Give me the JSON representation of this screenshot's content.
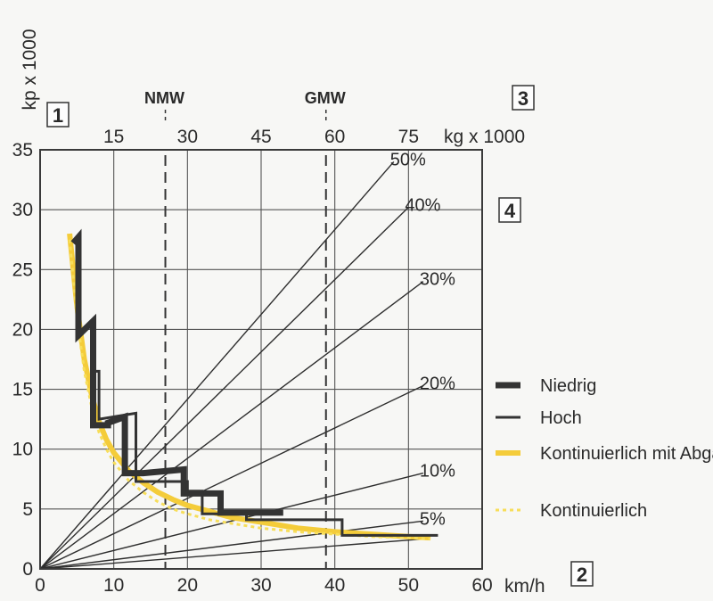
{
  "chart_data": {
    "type": "line",
    "ylabel": "kp x 1000",
    "xlabel": "km/h",
    "xlim": [
      0,
      60
    ],
    "ylim": [
      0,
      35
    ],
    "xticks": [
      "0",
      "10",
      "20",
      "30",
      "40",
      "50",
      "60"
    ],
    "yticks": [
      "0",
      "5",
      "10",
      "15",
      "20",
      "25",
      "30",
      "35"
    ],
    "top_axis": {
      "unit": "kg x 1000",
      "ticks": [
        {
          "label": "15",
          "x": 10
        },
        {
          "label": "30",
          "x": 20
        },
        {
          "label": "45",
          "x": 30
        },
        {
          "label": "60",
          "x": 40
        },
        {
          "label": "75",
          "x": 50
        }
      ]
    },
    "markers": [
      {
        "label": "NMW",
        "x": 17
      },
      {
        "label": "GMW",
        "x": 38.8
      }
    ],
    "grid": true,
    "gradients": [
      {
        "label": "50%",
        "to": [
          48,
          34
        ]
      },
      {
        "label": "40%",
        "to": [
          50,
          30.2
        ]
      },
      {
        "label": "30%",
        "to": [
          52,
          24
        ]
      },
      {
        "label": "20%",
        "to": [
          52,
          15.3
        ]
      },
      {
        "label": "10%",
        "to": [
          52,
          8
        ]
      },
      {
        "label": "5%",
        "to": [
          52,
          4
        ]
      },
      {
        "to": [
          52,
          2.5
        ]
      }
    ],
    "series": [
      {
        "name": "Niedrig",
        "style": "thick",
        "color": "#333333",
        "points": [
          [
            4.5,
            27.2
          ],
          [
            5.2,
            27.7
          ],
          [
            5.2,
            19.5
          ],
          [
            7.2,
            20.7
          ],
          [
            7.2,
            12
          ],
          [
            9.2,
            12
          ],
          [
            9.2,
            12.2
          ],
          [
            11.5,
            12.7
          ],
          [
            11.5,
            8
          ],
          [
            14,
            8
          ],
          [
            19.5,
            8.3
          ],
          [
            19.5,
            6.3
          ],
          [
            24.5,
            6.3
          ],
          [
            24.5,
            4.7
          ],
          [
            33,
            4.7
          ]
        ]
      },
      {
        "name": "Hoch",
        "style": "thin",
        "color": "#333333",
        "points": [
          [
            7.5,
            16.5
          ],
          [
            8,
            16.5
          ],
          [
            8,
            12.5
          ],
          [
            13,
            13
          ],
          [
            13,
            7.3
          ],
          [
            17,
            7.3
          ],
          [
            20,
            7.3
          ],
          [
            20,
            6.5
          ],
          [
            22,
            6.5
          ],
          [
            22,
            4.6
          ],
          [
            28,
            4.6
          ],
          [
            28,
            4.1
          ],
          [
            41,
            4.1
          ],
          [
            41,
            2.8
          ],
          [
            54,
            2.8
          ]
        ]
      },
      {
        "name": "Kontinuierlich mit Abgasbremse",
        "style": "thick-yellow",
        "color": "#f4cc3a",
        "points": [
          [
            4,
            28
          ],
          [
            5,
            22
          ],
          [
            6,
            17.5
          ],
          [
            7,
            14.5
          ],
          [
            8,
            12.3
          ],
          [
            9,
            10.8
          ],
          [
            10,
            9.7
          ],
          [
            12,
            8.2
          ],
          [
            14,
            7.2
          ],
          [
            16,
            6.4
          ],
          [
            18,
            5.8
          ],
          [
            20,
            5.3
          ],
          [
            23,
            4.8
          ],
          [
            26,
            4.3
          ],
          [
            30,
            3.9
          ],
          [
            35,
            3.4
          ],
          [
            40,
            3.1
          ],
          [
            45,
            2.9
          ],
          [
            50,
            2.7
          ],
          [
            53,
            2.6
          ]
        ]
      },
      {
        "name": "Kontinuierlich",
        "style": "dotted-yellow",
        "color": "#f7de5a",
        "points": [
          [
            4,
            27.5
          ],
          [
            5,
            21
          ],
          [
            6,
            16.5
          ],
          [
            7,
            13.5
          ],
          [
            8,
            11.4
          ],
          [
            9,
            10
          ],
          [
            10,
            8.9
          ],
          [
            12,
            7.4
          ],
          [
            14,
            6.4
          ],
          [
            16,
            5.6
          ],
          [
            18,
            5
          ],
          [
            20,
            4.6
          ],
          [
            23,
            4.1
          ],
          [
            26,
            3.8
          ],
          [
            30,
            3.4
          ],
          [
            35,
            3.1
          ],
          [
            40,
            2.9
          ],
          [
            45,
            2.7
          ],
          [
            50,
            2.6
          ],
          [
            53,
            2.5
          ]
        ]
      }
    ],
    "panel_numbers": [
      "1",
      "2",
      "3",
      "4"
    ],
    "legend_position": "right"
  }
}
